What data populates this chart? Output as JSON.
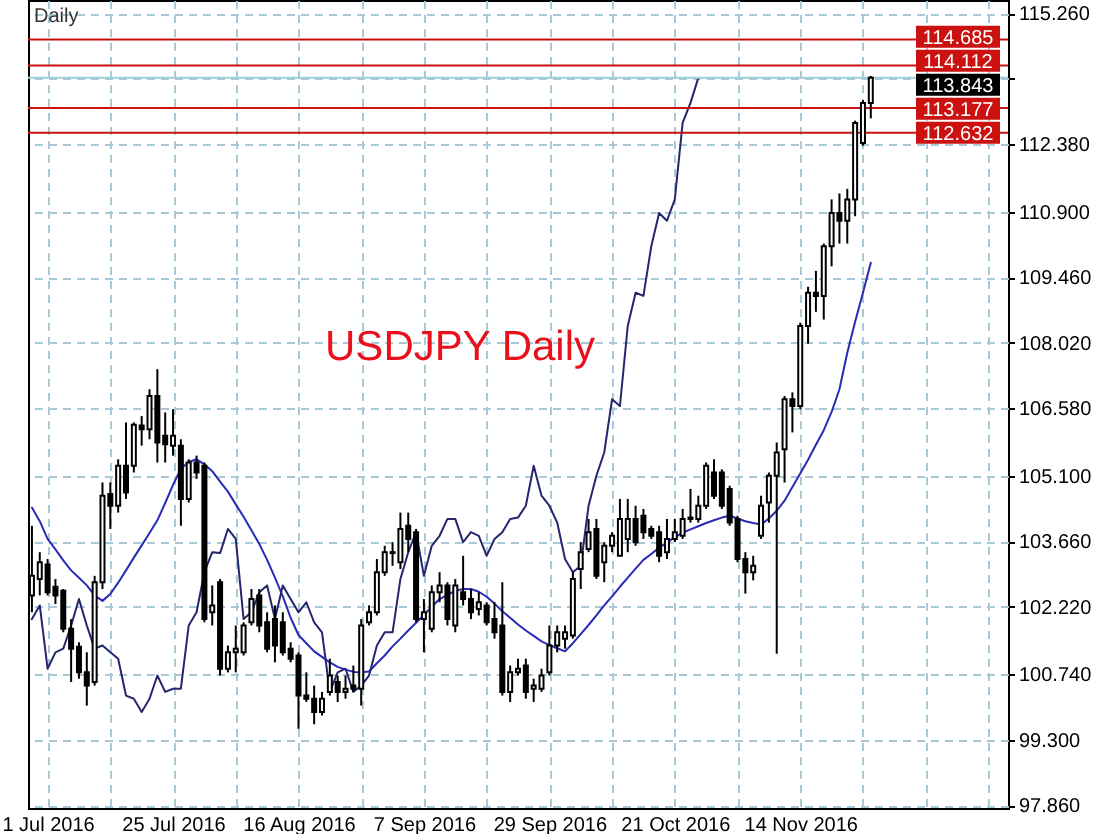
{
  "chart_data": {
    "type": "candlestick",
    "title": "USDJPY Daily",
    "annotations": [
      "Daily"
    ],
    "categories": [
      null,
      null,
      "1 Jul 2016",
      null,
      null,
      null,
      null,
      null,
      null,
      null,
      null,
      null,
      null,
      null,
      null,
      null,
      null,
      null,
      "25 Jul 2016",
      null,
      null,
      null,
      null,
      null,
      null,
      null,
      null,
      null,
      null,
      null,
      null,
      null,
      null,
      null,
      "16 Aug 2016",
      null,
      null,
      null,
      null,
      null,
      null,
      null,
      null,
      null,
      null,
      null,
      null,
      null,
      null,
      null,
      "7 Sep 2016",
      null,
      null,
      null,
      null,
      null,
      null,
      null,
      null,
      null,
      null,
      null,
      null,
      null,
      null,
      null,
      "29 Sep 2016",
      null,
      null,
      null,
      null,
      null,
      null,
      null,
      null,
      null,
      null,
      null,
      null,
      null,
      null,
      null,
      "21 Oct 2016",
      null,
      null,
      null,
      null,
      null,
      null,
      null,
      null,
      null,
      null,
      null,
      null,
      null,
      null,
      null,
      "14 Nov 2016",
      null,
      null,
      null,
      null,
      null,
      null,
      null,
      null,
      null,
      null,
      null,
      null,
      null,
      null,
      null,
      null,
      null,
      null,
      null,
      null,
      null,
      null,
      null,
      null,
      null,
      null
    ],
    "ohlc": [
      [
        102.47,
        104.0,
        102.1,
        102.9
      ],
      [
        102.83,
        103.42,
        102.47,
        103.2
      ],
      [
        103.15,
        103.27,
        102.47,
        102.54
      ],
      [
        102.66,
        102.83,
        102.28,
        102.47
      ],
      [
        102.57,
        102.61,
        101.66,
        101.74
      ],
      [
        101.74,
        101.95,
        100.57,
        101.3
      ],
      [
        101.34,
        101.44,
        100.64,
        100.78
      ],
      [
        100.78,
        101.22,
        100.05,
        100.49
      ],
      [
        100.57,
        102.9,
        100.49,
        102.76
      ],
      [
        102.76,
        104.95,
        102.61,
        104.66
      ],
      [
        104.7,
        104.95,
        103.93,
        104.44
      ],
      [
        104.44,
        105.46,
        104.29,
        105.32
      ],
      [
        105.32,
        106.27,
        104.59,
        104.73
      ],
      [
        105.32,
        106.27,
        105.17,
        106.22
      ],
      [
        106.2,
        106.41,
        105.76,
        106.12
      ],
      [
        106.12,
        107.0,
        105.9,
        106.85
      ],
      [
        106.85,
        107.44,
        105.39,
        105.83
      ],
      [
        105.98,
        106.49,
        105.39,
        105.79
      ],
      [
        105.76,
        106.56,
        105.54,
        105.98
      ],
      [
        105.76,
        105.9,
        104.0,
        104.59
      ],
      [
        104.59,
        105.46,
        104.51,
        105.39
      ],
      [
        105.39,
        105.54,
        105.03,
        105.17
      ],
      [
        105.32,
        105.39,
        101.88,
        101.95
      ],
      [
        102.1,
        102.69,
        101.81,
        102.25
      ],
      [
        102.76,
        102.83,
        100.71,
        100.86
      ],
      [
        100.86,
        101.37,
        100.78,
        101.22
      ],
      [
        101.22,
        101.81,
        100.78,
        101.3
      ],
      [
        101.22,
        101.88,
        101.15,
        101.81
      ],
      [
        101.88,
        102.61,
        101.81,
        102.39
      ],
      [
        102.47,
        102.61,
        101.66,
        101.81
      ],
      [
        101.88,
        102.1,
        101.22,
        101.3
      ],
      [
        101.95,
        102.25,
        101.0,
        101.37
      ],
      [
        101.88,
        102.1,
        101.15,
        101.22
      ],
      [
        101.3,
        101.44,
        101.0,
        101.08
      ],
      [
        101.15,
        101.22,
        99.54,
        100.27
      ],
      [
        100.27,
        100.78,
        100.13,
        100.2
      ],
      [
        100.2,
        100.49,
        99.64,
        99.91
      ],
      [
        99.91,
        100.35,
        99.83,
        100.2
      ],
      [
        100.35,
        101.08,
        100.27,
        100.71
      ],
      [
        100.57,
        100.71,
        100.13,
        100.35
      ],
      [
        100.35,
        100.71,
        100.2,
        100.42
      ],
      [
        100.49,
        100.93,
        100.35,
        100.42
      ],
      [
        100.42,
        101.95,
        100.05,
        101.81
      ],
      [
        101.88,
        102.25,
        101.81,
        102.1
      ],
      [
        102.1,
        103.27,
        102.03,
        102.98
      ],
      [
        102.98,
        103.56,
        102.9,
        103.42
      ],
      [
        103.42,
        103.64,
        103.12,
        103.4
      ],
      [
        103.2,
        104.29,
        103.05,
        103.93
      ],
      [
        104.0,
        104.29,
        103.42,
        103.71
      ],
      [
        103.86,
        103.93,
        101.88,
        101.95
      ],
      [
        101.95,
        102.39,
        101.22,
        102.1
      ],
      [
        101.74,
        102.69,
        101.66,
        102.54
      ],
      [
        102.54,
        102.98,
        102.32,
        102.69
      ],
      [
        102.69,
        102.76,
        101.81,
        101.95
      ],
      [
        101.81,
        102.83,
        101.66,
        102.69
      ],
      [
        102.54,
        103.34,
        102.25,
        102.39
      ],
      [
        102.39,
        102.61,
        101.95,
        102.1
      ],
      [
        102.17,
        102.54,
        102.03,
        102.32
      ],
      [
        102.25,
        102.32,
        101.81,
        101.88
      ],
      [
        101.95,
        102.32,
        101.52,
        101.66
      ],
      [
        101.81,
        102.76,
        100.27,
        100.35
      ],
      [
        100.35,
        100.93,
        100.13,
        100.78
      ],
      [
        100.78,
        101.08,
        100.71,
        100.86
      ],
      [
        100.93,
        101.08,
        100.2,
        100.35
      ],
      [
        100.42,
        100.64,
        100.13,
        100.49
      ],
      [
        100.42,
        100.86,
        100.35,
        100.71
      ],
      [
        100.78,
        101.81,
        100.71,
        101.37
      ],
      [
        101.37,
        101.81,
        101.22,
        101.66
      ],
      [
        101.52,
        101.81,
        101.3,
        101.66
      ],
      [
        101.59,
        102.98,
        101.52,
        102.83
      ],
      [
        103.05,
        103.64,
        102.61,
        103.42
      ],
      [
        103.49,
        104.15,
        103.42,
        103.86
      ],
      [
        103.93,
        104.15,
        102.83,
        102.9
      ],
      [
        103.2,
        103.64,
        102.76,
        103.56
      ],
      [
        103.56,
        103.86,
        103.42,
        103.78
      ],
      [
        103.34,
        104.59,
        103.34,
        104.15
      ],
      [
        103.71,
        104.59,
        103.42,
        104.15
      ],
      [
        104.15,
        104.44,
        103.56,
        103.64
      ],
      [
        104.22,
        104.37,
        103.71,
        103.86
      ],
      [
        103.93,
        104.0,
        103.71,
        103.78
      ],
      [
        103.86,
        104.0,
        103.2,
        103.34
      ],
      [
        103.42,
        104.15,
        103.27,
        103.71
      ],
      [
        103.71,
        104.15,
        103.64,
        103.86
      ],
      [
        103.78,
        104.37,
        103.71,
        104.15
      ],
      [
        104.15,
        104.81,
        104.07,
        104.18
      ],
      [
        104.15,
        104.66,
        104.07,
        104.44
      ],
      [
        104.44,
        105.39,
        104.37,
        105.32
      ],
      [
        105.17,
        105.46,
        104.59,
        104.66
      ],
      [
        105.17,
        105.24,
        104.37,
        104.44
      ],
      [
        104.81,
        104.88,
        104.0,
        104.07
      ],
      [
        104.15,
        104.22,
        103.2,
        103.27
      ],
      [
        103.27,
        103.42,
        102.51,
        102.98
      ],
      [
        102.98,
        103.34,
        102.8,
        103.12
      ],
      [
        103.78,
        104.66,
        103.71,
        104.44
      ],
      [
        104.51,
        105.17,
        104.07,
        105.1
      ],
      [
        105.1,
        105.83,
        101.19,
        105.61
      ],
      [
        105.68,
        106.85,
        104.95,
        106.78
      ],
      [
        106.78,
        106.93,
        106.05,
        106.63
      ],
      [
        106.63,
        108.46,
        106.56,
        108.39
      ],
      [
        108.39,
        109.25,
        108.0,
        109.12
      ],
      [
        109.12,
        109.6,
        108.7,
        109.05
      ],
      [
        109.05,
        110.2,
        108.53,
        110.14
      ],
      [
        110.14,
        111.17,
        109.7,
        110.87
      ],
      [
        110.87,
        111.3,
        110.2,
        110.7
      ],
      [
        110.7,
        111.4,
        110.2,
        111.17
      ],
      [
        111.17,
        112.9,
        110.8,
        112.85
      ],
      [
        112.41,
        113.35,
        112.35,
        113.29
      ],
      [
        113.29,
        113.88,
        112.95,
        113.84
      ],
      null,
      null,
      null,
      null,
      null,
      null,
      null,
      null,
      null,
      null,
      null,
      null,
      null,
      null,
      null,
      null,
      null
    ],
    "series": [
      {
        "type": "line",
        "color": "#2a2ab8",
        "values": [
          104.4,
          104.1,
          103.71,
          103.48,
          103.24,
          103.02,
          102.86,
          102.69,
          102.47,
          102.35,
          102.5,
          102.75,
          103.02,
          103.3,
          103.57,
          103.84,
          104.12,
          104.5,
          104.9,
          105.25,
          105.4,
          105.46,
          105.35,
          105.2,
          104.97,
          104.75,
          104.47,
          104.2,
          103.9,
          103.6,
          103.25,
          102.86,
          102.45,
          101.98,
          101.6,
          101.42,
          101.24,
          101.12,
          101.0,
          100.9,
          100.84,
          100.79,
          100.78,
          100.8,
          100.98,
          101.15,
          101.35,
          101.52,
          101.7,
          101.87,
          102.04,
          102.22,
          102.39,
          102.48,
          102.57,
          102.61,
          102.61,
          102.55,
          102.44,
          102.29,
          102.12,
          101.98,
          101.83,
          101.7,
          101.58,
          101.46,
          101.38,
          101.31,
          101.24,
          101.42,
          101.62,
          101.82,
          102.03,
          102.25,
          102.45,
          102.66,
          102.86,
          103.06,
          103.25,
          103.38,
          103.52,
          103.63,
          103.75,
          103.85,
          103.92,
          103.99,
          104.06,
          104.12,
          104.18,
          104.22,
          104.16,
          104.1,
          104.06,
          104.03,
          104.16,
          104.33,
          104.55,
          104.85,
          105.15,
          105.45,
          105.78,
          106.1,
          106.5,
          107.0,
          107.8,
          108.48,
          109.12,
          109.78,
          null,
          null,
          null,
          null,
          null,
          null,
          null,
          null,
          null,
          null,
          null,
          null,
          null,
          null,
          null,
          null,
          null
        ]
      },
      {
        "type": "line",
        "color": "#26266e",
        "values": [
          101.95,
          102.25,
          100.86,
          101.22,
          101.3,
          101.81,
          102.39,
          101.81,
          101.3,
          101.37,
          101.22,
          101.08,
          100.27,
          100.2,
          99.91,
          100.2,
          100.71,
          100.35,
          100.42,
          100.42,
          101.81,
          102.1,
          102.98,
          103.42,
          103.4,
          103.93,
          103.71,
          101.95,
          102.1,
          102.54,
          102.69,
          101.95,
          102.69,
          102.39,
          102.1,
          102.32,
          101.88,
          101.66,
          100.35,
          100.78,
          100.86,
          100.35,
          100.49,
          100.71,
          101.37,
          101.66,
          101.66,
          102.83,
          103.42,
          103.86,
          102.9,
          103.56,
          103.78,
          104.15,
          104.15,
          103.64,
          103.86,
          103.78,
          103.34,
          103.71,
          103.86,
          104.15,
          104.18,
          104.44,
          105.32,
          104.66,
          104.44,
          104.07,
          103.27,
          102.98,
          103.12,
          104.44,
          105.1,
          105.61,
          106.78,
          106.63,
          108.39,
          109.12,
          109.05,
          110.14,
          110.87,
          110.7,
          111.17,
          112.85,
          113.29,
          113.84,
          null,
          null,
          null,
          null,
          null,
          null,
          null,
          null,
          null,
          null,
          null,
          null,
          null,
          null,
          null,
          null,
          null,
          null,
          null,
          null,
          null,
          null,
          null,
          null,
          null,
          null,
          null,
          null,
          null,
          null,
          null,
          null,
          null,
          null,
          null,
          null,
          null,
          null,
          null
        ]
      }
    ],
    "ylim": [
      97.8,
      115.55
    ],
    "yticks": [
      {
        "value": 97.86,
        "label": "97.860"
      },
      {
        "value": 99.3,
        "label": "99.300"
      },
      {
        "value": 100.74,
        "label": "100.740"
      },
      {
        "value": 102.22,
        "label": "102.220"
      },
      {
        "value": 103.66,
        "label": "103.660"
      },
      {
        "value": 105.1,
        "label": "105.100"
      },
      {
        "value": 106.58,
        "label": "106.580"
      },
      {
        "value": 108.02,
        "label": "108.020"
      },
      {
        "value": 109.46,
        "label": "109.460"
      },
      {
        "value": 110.9,
        "label": "110.900"
      },
      {
        "value": 112.38,
        "label": "112.380"
      },
      {
        "value": 113.82,
        "label": null
      },
      {
        "value": 115.26,
        "label": "115.260"
      }
    ],
    "grid": true,
    "ref_lines": [
      {
        "axis": "y",
        "value": 114.685,
        "label": "114.685",
        "color": "#cc1111"
      },
      {
        "axis": "y",
        "value": 114.112,
        "label": "114.112",
        "color": "#cc1111"
      },
      {
        "axis": "y",
        "value": 113.843,
        "label": "113.843",
        "color": "#9fcfdd"
      },
      {
        "axis": "y",
        "value": 113.177,
        "label": "113.177",
        "color": "#cc1111"
      },
      {
        "axis": "y",
        "value": 112.632,
        "label": "112.632",
        "color": "#cc1111"
      }
    ]
  }
}
